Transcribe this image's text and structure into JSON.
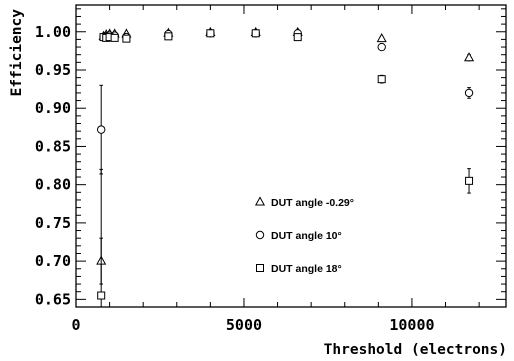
{
  "chart_data": {
    "type": "scatter",
    "title": "",
    "xlabel": "Threshold (electrons)",
    "ylabel": "Efficiency",
    "xlim": [
      0,
      12800
    ],
    "ylim": [
      0.64,
      1.035
    ],
    "x_ticks": [
      0,
      5000,
      10000
    ],
    "x_tick_labels": [
      "0",
      "5000",
      "10000"
    ],
    "y_ticks": [
      0.65,
      0.7,
      0.75,
      0.8,
      0.85,
      0.9,
      0.95,
      1.0
    ],
    "y_tick_labels": [
      "0.65",
      "0.70",
      "0.75",
      "0.80",
      "0.85",
      "0.90",
      "0.95",
      "1.00"
    ],
    "grid": false,
    "legend_position": "center-right",
    "series": [
      {
        "name": "DUT angle -0.29°",
        "marker": "triangle",
        "points": [
          {
            "x": 750,
            "y": 0.7,
            "err": 0.03
          },
          {
            "x": 820,
            "y": 0.994,
            "err": 0.002
          },
          {
            "x": 900,
            "y": 0.996,
            "err": 0.002
          },
          {
            "x": 1000,
            "y": 0.997,
            "err": 0.002
          },
          {
            "x": 1150,
            "y": 0.997,
            "err": 0.002
          },
          {
            "x": 1500,
            "y": 0.997,
            "err": 0.002
          },
          {
            "x": 2750,
            "y": 0.998,
            "err": 0.002
          },
          {
            "x": 4000,
            "y": 0.999,
            "err": 0.002
          },
          {
            "x": 5350,
            "y": 0.999,
            "err": 0.002
          },
          {
            "x": 6600,
            "y": 0.999,
            "err": 0.002
          },
          {
            "x": 9100,
            "y": 0.991,
            "err": 0.003
          },
          {
            "x": 11700,
            "y": 0.966,
            "err": 0.004
          }
        ]
      },
      {
        "name": "DUT angle 10°",
        "marker": "circle",
        "points": [
          {
            "x": 750,
            "y": 0.872,
            "err": 0.058
          },
          {
            "x": 820,
            "y": 0.993,
            "err": 0.002
          },
          {
            "x": 900,
            "y": 0.994,
            "err": 0.002
          },
          {
            "x": 1000,
            "y": 0.995,
            "err": 0.002
          },
          {
            "x": 1150,
            "y": 0.995,
            "err": 0.002
          },
          {
            "x": 1500,
            "y": 0.993,
            "err": 0.002
          },
          {
            "x": 2750,
            "y": 0.997,
            "err": 0.002
          },
          {
            "x": 4000,
            "y": 0.998,
            "err": 0.002
          },
          {
            "x": 5350,
            "y": 0.998,
            "err": 0.002
          },
          {
            "x": 6600,
            "y": 0.998,
            "err": 0.002
          },
          {
            "x": 9100,
            "y": 0.98,
            "err": 0.003
          },
          {
            "x": 11700,
            "y": 0.92,
            "err": 0.007
          }
        ]
      },
      {
        "name": "DUT angle 18°",
        "marker": "square",
        "points": [
          {
            "x": 750,
            "y": 0.655,
            "err": 0.165
          },
          {
            "x": 820,
            "y": 0.993,
            "err": 0.003
          },
          {
            "x": 900,
            "y": 0.992,
            "err": 0.002
          },
          {
            "x": 1000,
            "y": 0.993,
            "err": 0.002
          },
          {
            "x": 1150,
            "y": 0.992,
            "err": 0.002
          },
          {
            "x": 1500,
            "y": 0.991,
            "err": 0.002
          },
          {
            "x": 2750,
            "y": 0.994,
            "err": 0.002
          },
          {
            "x": 4000,
            "y": 0.998,
            "err": 0.002
          },
          {
            "x": 5350,
            "y": 0.998,
            "err": 0.002
          },
          {
            "x": 6600,
            "y": 0.993,
            "err": 0.003
          },
          {
            "x": 9100,
            "y": 0.938,
            "err": 0.005
          },
          {
            "x": 11700,
            "y": 0.805,
            "err": 0.016
          }
        ]
      }
    ]
  }
}
